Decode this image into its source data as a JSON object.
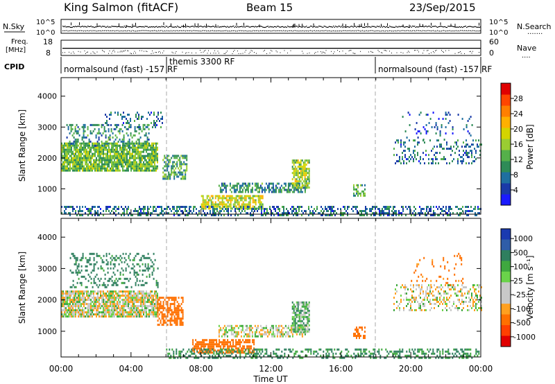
{
  "header": {
    "station": "King Salmon (fitACF)",
    "beam": "Beam 15",
    "date": "23/Sep/2015"
  },
  "strips": {
    "nsky_label": "N.Sky",
    "nsky_top": "10^5",
    "nsky_bottom": "10^0",
    "nsearch_label": "N.Search",
    "nsearch_top": "10^5",
    "nsearch_bottom": "10^0",
    "freq_label_1": "Freq.",
    "freq_label_2": "[MHz]",
    "freq_top": "18",
    "freq_bottom": "8",
    "nave_label": "Nave",
    "nave_top": "60",
    "nave_bottom": "0",
    "cpid_label": "CPID",
    "cpid_segments": [
      {
        "text": "normalsound (fast) -157 RF",
        "start_h": 0,
        "end_h": 6
      },
      {
        "text": "themis 3300 RF",
        "start_h": 6,
        "end_h": 18
      },
      {
        "text": "normalsound (fast) -157 RF",
        "start_h": 18,
        "end_h": 24
      }
    ]
  },
  "axes": {
    "ylabel": "Slant Range [km]",
    "xlabel": "Time UT",
    "xticks": [
      "00:00",
      "04:00",
      "08:00",
      "12:00",
      "16:00",
      "20:00",
      "00:00"
    ],
    "yticks": [
      "1000",
      "2000",
      "3000",
      "4000"
    ]
  },
  "colorbars": {
    "power": {
      "label": "Power [dB]",
      "ticks": [
        "4",
        "8",
        "12",
        "16",
        "20",
        "24",
        "28"
      ],
      "colors": [
        "#1a1aff",
        "#1a3aa8",
        "#1f6fa0",
        "#2e8b57",
        "#55b04a",
        "#9acd32",
        "#d4d400",
        "#ffb000",
        "#ff7f00",
        "#ff4500",
        "#e00000"
      ]
    },
    "velocity": {
      "label": "Velocity [m s⁻¹]",
      "ticks": [
        "1000",
        "500",
        "100",
        "25",
        "-25",
        "-100",
        "-500",
        "-1000"
      ],
      "colors": [
        "#1a3ab0",
        "#2f5da8",
        "#2f7f5f",
        "#3fa83f",
        "#6ad34a",
        "#c8c8c8",
        "#c8c8c8",
        "#ffa020",
        "#ff7000",
        "#ff4000",
        "#e00000"
      ]
    }
  },
  "chart_data": [
    {
      "type": "heatmap",
      "name": "power",
      "x_range_h": [
        0,
        24
      ],
      "ylim_km": [
        180,
        4600
      ],
      "regions": [
        {
          "t0": 0.0,
          "t1": 5.5,
          "r0": 1600,
          "r1": 2500,
          "value_db": 14,
          "density": 0.85
        },
        {
          "t0": 0.3,
          "t1": 5.0,
          "r0": 2400,
          "r1": 3100,
          "value_db": 10,
          "density": 0.35
        },
        {
          "t0": 2.5,
          "t1": 5.8,
          "r0": 3000,
          "r1": 3500,
          "value_db": 8,
          "density": 0.2
        },
        {
          "t0": 5.8,
          "t1": 7.2,
          "r0": 1300,
          "r1": 2100,
          "value_db": 12,
          "density": 0.6
        },
        {
          "t0": 8.0,
          "t1": 11.5,
          "r0": 350,
          "r1": 800,
          "value_db": 18,
          "density": 0.7
        },
        {
          "t0": 9.0,
          "t1": 14.0,
          "r0": 900,
          "r1": 1200,
          "value_db": 10,
          "density": 0.55
        },
        {
          "t0": 13.2,
          "t1": 14.2,
          "r0": 1050,
          "r1": 1950,
          "value_db": 16,
          "density": 0.75
        },
        {
          "t0": 16.7,
          "t1": 17.4,
          "r0": 800,
          "r1": 1150,
          "value_db": 12,
          "density": 0.55
        },
        {
          "t0": 0.0,
          "t1": 24.0,
          "r0": 180,
          "r1": 450,
          "value_db": 8,
          "density": 0.4
        },
        {
          "t0": 19.0,
          "t1": 24.0,
          "r0": 1800,
          "r1": 2600,
          "value_db": 8,
          "density": 0.25
        },
        {
          "t0": 19.5,
          "t1": 23.5,
          "r0": 2600,
          "r1": 3500,
          "value_db": 6,
          "density": 0.08
        }
      ]
    },
    {
      "type": "heatmap",
      "name": "velocity",
      "x_range_h": [
        0,
        24
      ],
      "ylim_km": [
        180,
        4600
      ],
      "regions": [
        {
          "t0": 0.0,
          "t1": 5.5,
          "r0": 1500,
          "r1": 2300,
          "value_ms": 0,
          "density": 0.85
        },
        {
          "t0": 0.5,
          "t1": 5.5,
          "r0": 2400,
          "r1": 3500,
          "value_ms": 150,
          "density": 0.25
        },
        {
          "t0": 5.5,
          "t1": 7.0,
          "r0": 1200,
          "r1": 2100,
          "value_ms": -300,
          "density": 0.6
        },
        {
          "t0": 7.5,
          "t1": 11.0,
          "r0": 350,
          "r1": 750,
          "value_ms": -300,
          "density": 0.7
        },
        {
          "t0": 9.0,
          "t1": 14.0,
          "r0": 850,
          "r1": 1200,
          "value_ms": 0,
          "density": 0.55
        },
        {
          "t0": 13.2,
          "t1": 14.2,
          "r0": 1000,
          "r1": 1950,
          "value_ms": 60,
          "density": 0.75
        },
        {
          "t0": 16.7,
          "t1": 17.4,
          "r0": 800,
          "r1": 1150,
          "value_ms": -200,
          "density": 0.5
        },
        {
          "t0": 6.0,
          "t1": 24.0,
          "r0": 180,
          "r1": 450,
          "value_ms": 120,
          "density": 0.4
        },
        {
          "t0": 19.0,
          "t1": 24.0,
          "r0": 1700,
          "r1": 2500,
          "value_ms": 0,
          "density": 0.3
        },
        {
          "t0": 20.0,
          "t1": 23.0,
          "r0": 2500,
          "r1": 3500,
          "value_ms": -150,
          "density": 0.08
        }
      ]
    }
  ]
}
